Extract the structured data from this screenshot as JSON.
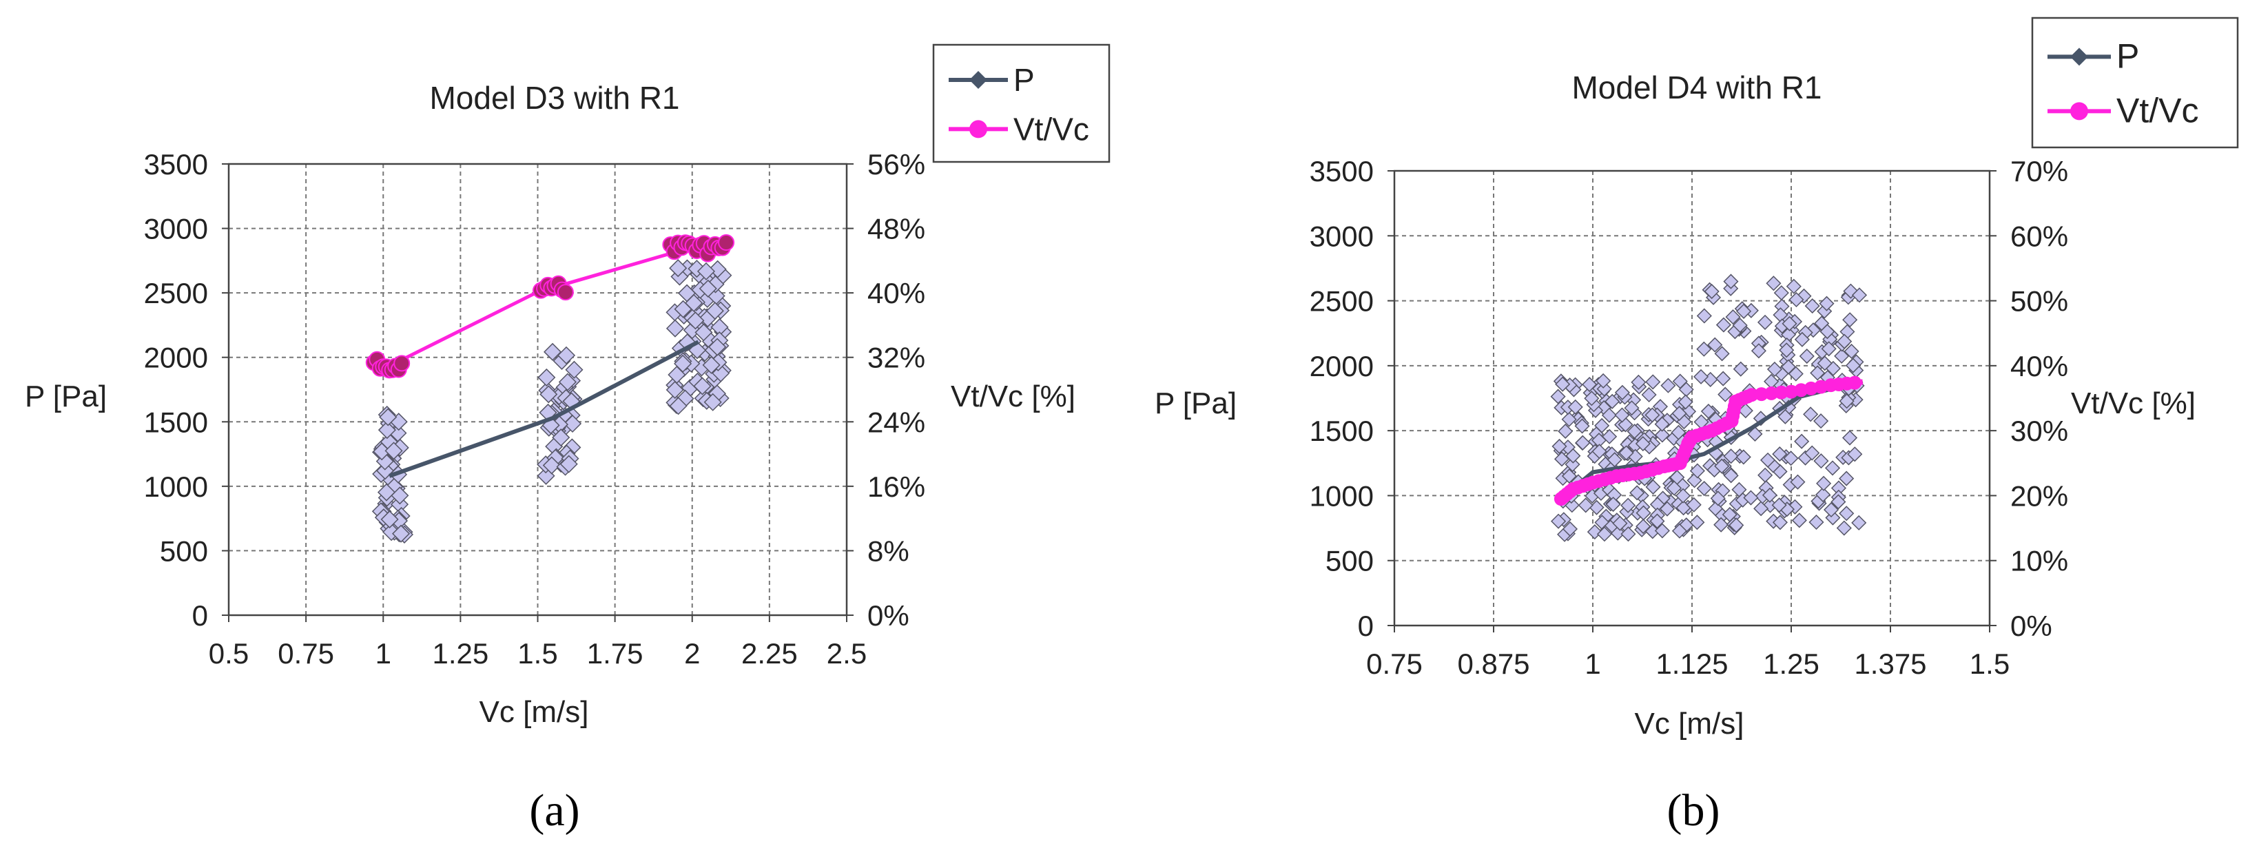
{
  "colors": {
    "p_line": "#475569",
    "p_marker_fill": "#c7c5ee",
    "p_marker_stroke": "#555566",
    "ratio_line": "#ff22dd",
    "ratio_marker": "#b0226e",
    "grid": "#777777",
    "frame": "#444444"
  },
  "chart_data": [
    {
      "type": "scatter",
      "id": "a",
      "panel_label": "(a)",
      "title": "Model D3 with R1",
      "xlabel": "Vc [m/s]",
      "ylabel": "P [Pa]",
      "y2label": "Vt/Vc [%]",
      "xlim": [
        0.5,
        2.5
      ],
      "ylim": [
        0,
        3500
      ],
      "y2lim": [
        0,
        56
      ],
      "xticks": [
        0.5,
        0.75,
        1,
        1.25,
        1.5,
        1.75,
        2,
        2.25,
        2.5
      ],
      "xtick_labels": [
        "0.5",
        "0.75",
        "1",
        "1.25",
        "1.5",
        "1.75",
        "2",
        "2.25",
        "2.5"
      ],
      "yticks": [
        0,
        500,
        1000,
        1500,
        2000,
        2500,
        3000,
        3500
      ],
      "ytick_labels": [
        "0",
        "500",
        "1000",
        "1500",
        "2000",
        "2500",
        "3000",
        "3500"
      ],
      "y2ticks": [
        0,
        8,
        16,
        24,
        32,
        40,
        48,
        56
      ],
      "y2tick_labels": [
        "0%",
        "8%",
        "16%",
        "24%",
        "32%",
        "40%",
        "48%",
        "56%"
      ],
      "legend": [
        "P",
        "Vt/Vc"
      ],
      "legend_position": "top-right",
      "series": [
        {
          "name": "P",
          "axis": "left",
          "line": {
            "x": [
              1.02,
              1.55,
              2.02
            ],
            "y": [
              1080,
              1530,
              2120
            ]
          },
          "scatter_clusters": [
            {
              "x_range": [
                0.99,
                1.07
              ],
              "y_range": [
                600,
                1560
              ],
              "count": 45
            },
            {
              "x_range": [
                1.52,
                1.62
              ],
              "y_range": [
                1080,
                2050
              ],
              "count": 45
            },
            {
              "x_range": [
                1.94,
                2.1
              ],
              "y_range": [
                1620,
                2700
              ],
              "count": 80
            }
          ]
        },
        {
          "name": "Vt/Vc",
          "axis": "right",
          "line": {
            "x": [
              0.98,
              1.02,
              1.05,
              1.52,
              1.58,
              1.94,
              1.98,
              2.02,
              2.06,
              2.1
            ],
            "y": [
              30.0,
              31.0,
              31.5,
              40.5,
              41.0,
              45.0,
              45.5,
              46.0,
              46.0,
              45.5
            ]
          },
          "marker_clusters": [
            {
              "x_range": [
                0.97,
                1.06
              ],
              "y_range": [
                29.8,
                32.0
              ],
              "count": 10
            },
            {
              "x_range": [
                1.51,
                1.59
              ],
              "y_range": [
                40.0,
                41.3
              ],
              "count": 8
            },
            {
              "x_range": [
                1.93,
                2.11
              ],
              "y_range": [
                44.8,
                46.3
              ],
              "count": 16
            }
          ]
        }
      ]
    },
    {
      "type": "scatter",
      "id": "b",
      "panel_label": "(b)",
      "title": "Model D4 with R1",
      "xlabel": "Vc [m/s]",
      "ylabel": "P [Pa]",
      "y2label": "Vt/Vc [%]",
      "xlim": [
        0.75,
        1.5
      ],
      "ylim": [
        0,
        3500
      ],
      "y2lim": [
        0,
        70
      ],
      "xticks": [
        0.75,
        0.875,
        1,
        1.125,
        1.25,
        1.375,
        1.5
      ],
      "xtick_labels": [
        "0.75",
        "0.875",
        "1",
        "1.125",
        "1.25",
        "1.375",
        "1.5"
      ],
      "yticks": [
        0,
        500,
        1000,
        1500,
        2000,
        2500,
        3000,
        3500
      ],
      "ytick_labels": [
        "0",
        "500",
        "1000",
        "1500",
        "2000",
        "2500",
        "3000",
        "3500"
      ],
      "y2ticks": [
        0,
        10,
        20,
        30,
        40,
        50,
        60,
        70
      ],
      "y2tick_labels": [
        "0%",
        "10%",
        "20%",
        "30%",
        "40%",
        "50%",
        "60%",
        "70%"
      ],
      "legend": [
        "P",
        "Vt/Vc"
      ],
      "legend_position": "top-right",
      "series": [
        {
          "name": "P",
          "axis": "left",
          "line": {
            "x": [
              0.96,
              1.0,
              1.05,
              1.1,
              1.14,
              1.2,
              1.26,
              1.34
            ],
            "y": [
              980,
              1180,
              1230,
              1260,
              1320,
              1520,
              1760,
              1880
            ]
          },
          "scatter_bands": [
            {
              "x_range": [
                0.955,
                1.125
              ],
              "y_range": [
                700,
                1900
              ],
              "count": 190
            },
            {
              "x_range": [
                1.125,
                1.34
              ],
              "y_range": [
                750,
                2650
              ],
              "count": 200
            }
          ]
        },
        {
          "name": "Vt/Vc",
          "axis": "right",
          "line": {
            "x": [
              0.96,
              0.975,
              1.0,
              1.03,
              1.06,
              1.09,
              1.11,
              1.12,
              1.125,
              1.15,
              1.175,
              1.18,
              1.2,
              1.25,
              1.3,
              1.34
            ],
            "y": [
              19.5,
              21.0,
              22.0,
              23.0,
              23.5,
              24.5,
              25.0,
              28.0,
              29.0,
              30.0,
              31.5,
              34.5,
              35.5,
              36.0,
              37.0,
              37.5
            ]
          }
        }
      ]
    }
  ]
}
